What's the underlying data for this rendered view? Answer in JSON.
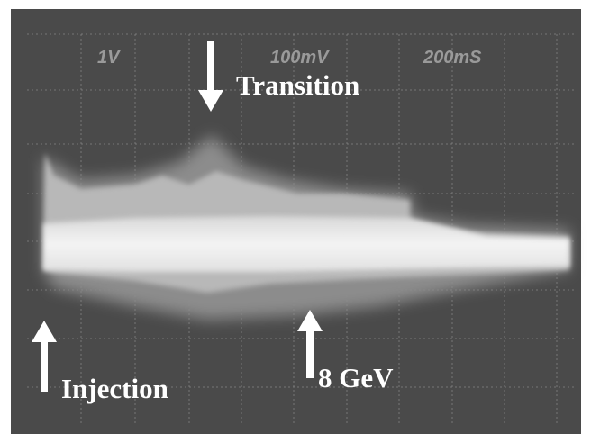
{
  "screen_labels": {
    "volts_1": "1V",
    "volts_2": "100mV",
    "time": "200mS"
  },
  "annotations": {
    "transition": "Transition",
    "injection": "Injection",
    "energy": "8 GeV"
  }
}
